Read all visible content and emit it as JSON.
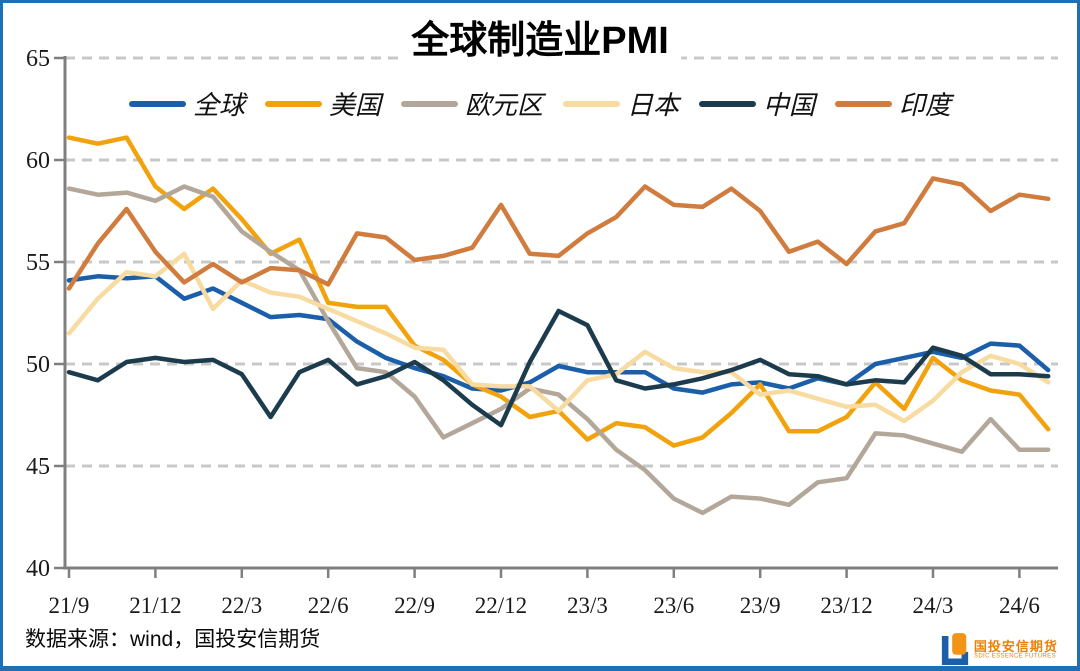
{
  "colors": {
    "border": "#1F6FB5",
    "grid": "#C8C8C8",
    "axis": "#7F7F7F",
    "tick_label": "#1A1A1A",
    "title": "#000000",
    "logo_blue": "#1C5FA8",
    "logo_orange": "#F39417",
    "logo_text": "#E9820D"
  },
  "chart_data": {
    "type": "line",
    "title": "全球制造业PMI",
    "xlabel": "",
    "ylabel": "",
    "ylim": [
      40,
      65
    ],
    "y_ticks": [
      65,
      60,
      55,
      50,
      45,
      40
    ],
    "grid": "horizontal-dashed",
    "legend_position": "top",
    "tick_every": 3,
    "x": [
      "21/9",
      "21/10",
      "21/11",
      "21/12",
      "22/1",
      "22/2",
      "22/3",
      "22/4",
      "22/5",
      "22/6",
      "22/7",
      "22/8",
      "22/9",
      "22/10",
      "22/11",
      "22/12",
      "23/1",
      "23/2",
      "23/3",
      "23/4",
      "23/5",
      "23/6",
      "23/7",
      "23/8",
      "23/9",
      "23/10",
      "23/11",
      "23/12",
      "24/1",
      "24/2",
      "24/3",
      "24/4",
      "24/5",
      "24/6",
      "24/7"
    ],
    "x_tick_labels": [
      "21/9",
      "21/12",
      "22/3",
      "22/6",
      "22/9",
      "22/12",
      "23/3",
      "23/6",
      "23/9",
      "23/12",
      "24/3",
      "24/6"
    ],
    "series": [
      {
        "name": "全球",
        "color": "#1B5EA9",
        "values": [
          54.1,
          54.3,
          54.2,
          54.3,
          53.2,
          53.7,
          53.0,
          52.3,
          52.4,
          52.2,
          51.1,
          50.3,
          49.8,
          49.4,
          48.8,
          48.7,
          49.1,
          49.9,
          49.6,
          49.6,
          49.6,
          48.8,
          48.6,
          49.0,
          49.1,
          48.8,
          49.3,
          49.0,
          50.0,
          50.3,
          50.6,
          50.3,
          51.0,
          50.9,
          49.7
        ]
      },
      {
        "name": "美国",
        "color": "#F2A20D",
        "values": [
          61.1,
          60.8,
          61.1,
          58.7,
          57.6,
          58.6,
          57.1,
          55.4,
          56.1,
          53.0,
          52.8,
          52.8,
          50.9,
          50.2,
          49.0,
          48.4,
          47.4,
          47.7,
          46.3,
          47.1,
          46.9,
          46.0,
          46.4,
          47.6,
          49.0,
          46.7,
          46.7,
          47.4,
          49.1,
          47.8,
          50.3,
          49.2,
          48.7,
          48.5,
          46.8
        ]
      },
      {
        "name": "欧元区",
        "color": "#B3A79A",
        "values": [
          58.6,
          58.3,
          58.4,
          58.0,
          58.7,
          58.2,
          56.5,
          55.5,
          54.6,
          52.1,
          49.8,
          49.6,
          48.4,
          46.4,
          47.1,
          47.8,
          48.8,
          48.5,
          47.3,
          45.8,
          44.8,
          43.4,
          42.7,
          43.5,
          43.4,
          43.1,
          44.2,
          44.4,
          46.6,
          46.5,
          46.1,
          45.7,
          47.3,
          45.8,
          45.8
        ]
      },
      {
        "name": "日本",
        "color": "#F8DBA0",
        "values": [
          51.5,
          53.2,
          54.5,
          54.3,
          55.4,
          52.7,
          54.1,
          53.5,
          53.3,
          52.7,
          52.1,
          51.5,
          50.8,
          50.7,
          49.0,
          48.9,
          48.9,
          47.7,
          49.2,
          49.5,
          50.6,
          49.8,
          49.6,
          49.6,
          48.5,
          48.7,
          48.3,
          47.9,
          48.0,
          47.2,
          48.2,
          49.6,
          50.4,
          50.0,
          49.1
        ]
      },
      {
        "name": "中国",
        "color": "#1C3C4E",
        "values": [
          49.6,
          49.2,
          50.1,
          50.3,
          50.1,
          50.2,
          49.5,
          47.4,
          49.6,
          50.2,
          49.0,
          49.4,
          50.1,
          49.2,
          48.0,
          47.0,
          50.1,
          52.6,
          51.9,
          49.2,
          48.8,
          49.0,
          49.3,
          49.7,
          50.2,
          49.5,
          49.4,
          49.0,
          49.2,
          49.1,
          50.8,
          50.4,
          49.5,
          49.5,
          49.4
        ]
      },
      {
        "name": "印度",
        "color": "#D07C3E",
        "values": [
          53.7,
          55.9,
          57.6,
          55.5,
          54.0,
          54.9,
          54.0,
          54.7,
          54.6,
          53.9,
          56.4,
          56.2,
          55.1,
          55.3,
          55.7,
          57.8,
          55.4,
          55.3,
          56.4,
          57.2,
          58.7,
          57.8,
          57.7,
          58.6,
          57.5,
          55.5,
          56.0,
          54.9,
          56.5,
          56.9,
          59.1,
          58.8,
          57.5,
          58.3,
          58.1
        ]
      }
    ]
  },
  "footer": {
    "source": "数据来源：wind，国投安信期货",
    "logo_name": "国投安信期货",
    "logo_subtitle": "SDIC ESSENCE FUTURES"
  }
}
